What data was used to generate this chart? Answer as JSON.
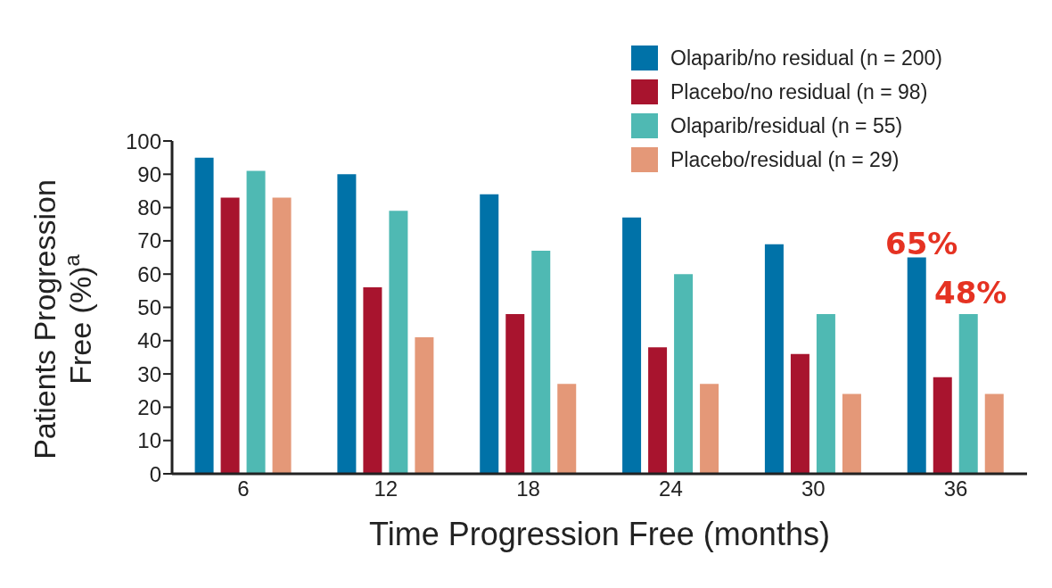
{
  "chart_data": {
    "type": "bar",
    "xlabel": "Time Progression Free (months)",
    "ylabel": "Patients Progression Free (%)$^{a}$",
    "categories": [
      "6",
      "12",
      "18",
      "24",
      "30",
      "36"
    ],
    "series": [
      {
        "name": "Olaparib/no residual (n = 200)",
        "color": "#0072a8",
        "values": [
          95,
          90,
          84,
          77,
          69,
          65
        ]
      },
      {
        "name": "Placebo/no residual (n = 98)",
        "color": "#a8142e",
        "values": [
          83,
          56,
          48,
          38,
          36,
          29
        ]
      },
      {
        "name": "Olaparib/residual (n = 55)",
        "color": "#4fb9b3",
        "values": [
          91,
          79,
          67,
          60,
          48,
          48
        ]
      },
      {
        "name": "Placebo/residual (n = 29)",
        "color": "#e49878",
        "values": [
          83,
          41,
          27,
          27,
          24,
          24
        ]
      }
    ],
    "ylim": [
      0,
      100
    ],
    "yticks": [
      0,
      10,
      20,
      30,
      40,
      50,
      60,
      70,
      80,
      90,
      100
    ],
    "grid": false,
    "legend": "top right",
    "annotations": [
      "65%",
      "48%"
    ]
  }
}
